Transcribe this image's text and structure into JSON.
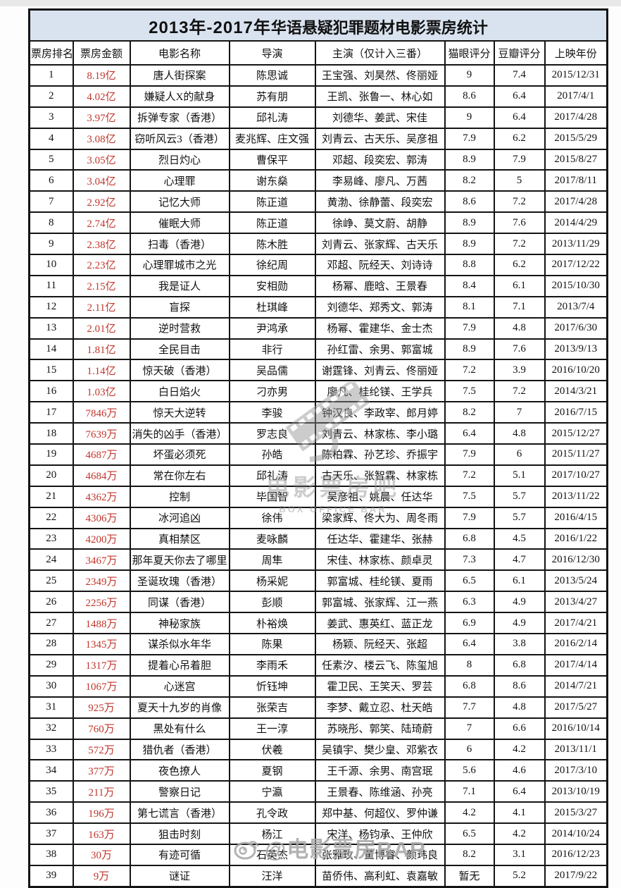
{
  "title": {
    "part1": "2013年-2017年",
    "part2": "华语悬疑犯罪题材电影票房统计"
  },
  "chart_data": {
    "type": "table",
    "title": "2013年-2017年华语悬疑犯罪题材电影票房统计",
    "columns": [
      "票房排名",
      "票房金额",
      "电影名称",
      "导演",
      "主演（仅计入三番）",
      "猫眼评分",
      "豆瓣评分",
      "上映年份"
    ],
    "rows": [
      [
        "1",
        "8.19亿",
        "唐人街探案",
        "陈思诚",
        "王宝强、刘昊然、佟丽娅",
        "9",
        "7.4",
        "2015/12/31"
      ],
      [
        "2",
        "4.02亿",
        "嫌疑人X的献身",
        "苏有朋",
        "王凯、张鲁一、林心如",
        "8.6",
        "6.4",
        "2017/4/1"
      ],
      [
        "3",
        "3.97亿",
        "拆弹专家（香港）",
        "邱礼涛",
        "刘德华、姜武、宋佳",
        "9",
        "6.4",
        "2017/4/28"
      ],
      [
        "4",
        "3.08亿",
        "窃听风云3（香港）",
        "麦兆辉、庄文强",
        "刘青云、古天乐、吴彦祖",
        "7.9",
        "6.2",
        "2015/5/29"
      ],
      [
        "5",
        "3.05亿",
        "烈日灼心",
        "曹保平",
        "邓超、段奕宏、郭涛",
        "8.9",
        "7.9",
        "2015/8/27"
      ],
      [
        "6",
        "3.04亿",
        "心理罪",
        "谢东燊",
        "李易峰、廖凡、万茜",
        "8.2",
        "5",
        "2017/8/11"
      ],
      [
        "7",
        "2.92亿",
        "记忆大师",
        "陈正道",
        "黄渤、徐静蕾、段奕宏",
        "8.6",
        "7.2",
        "2017/4/28"
      ],
      [
        "8",
        "2.74亿",
        "催眠大师",
        "陈正道",
        "徐峥、莫文蔚、胡静",
        "8.9",
        "7.6",
        "2014/4/29"
      ],
      [
        "9",
        "2.38亿",
        "扫毒（香港）",
        "陈木胜",
        "刘青云、张家辉、古天乐",
        "8.9",
        "7.2",
        "2013/11/29"
      ],
      [
        "10",
        "2.23亿",
        "心理罪城市之光",
        "徐纪周",
        "邓超、阮经天、刘诗诗",
        "8.8",
        "6.2",
        "2017/12/22"
      ],
      [
        "11",
        "2.15亿",
        "我是证人",
        "安相勋",
        "杨幂、鹿晗、王景春",
        "8.4",
        "6.1",
        "2015/10/30"
      ],
      [
        "12",
        "2.11亿",
        "盲探",
        "杜琪峰",
        "刘德华、郑秀文、郭涛",
        "8.1",
        "7.1",
        "2013/7/4"
      ],
      [
        "13",
        "2.01亿",
        "逆时营救",
        "尹鸿承",
        "杨幂、霍建华、金士杰",
        "7.9",
        "4.8",
        "2017/6/30"
      ],
      [
        "14",
        "1.81亿",
        "全民目击",
        "非行",
        "孙红雷、余男、郭富城",
        "8.9",
        "7.6",
        "2013/9/13"
      ],
      [
        "15",
        "1.14亿",
        "惊天破（香港）",
        "吴品儒",
        "谢霆锋、刘青云、佟丽娅",
        "7.2",
        "3.9",
        "2016/10/20"
      ],
      [
        "16",
        "1.03亿",
        "白日焰火",
        "刁亦男",
        "廖凡、桂纶镁、王学兵",
        "7.5",
        "7.2",
        "2014/3/21"
      ],
      [
        "17",
        "7846万",
        "惊天大逆转",
        "李骏",
        "钟汉良、李政宰、郎月婷",
        "8.2",
        "7",
        "2016/7/15"
      ],
      [
        "18",
        "7639万",
        "消失的凶手（香港）",
        "罗志良",
        "刘青云、林家栋、李小璐",
        "6.4",
        "4.8",
        "2015/12/27"
      ],
      [
        "19",
        "4687万",
        "坏蛋必须死",
        "孙皓",
        "陈柏霖、孙艺珍、乔振宇",
        "7.9",
        "6",
        "2015/11/27"
      ],
      [
        "20",
        "4684万",
        "常在你左右",
        "邱礼涛",
        "古天乐、张智霖、林家栋",
        "7.2",
        "5.1",
        "2017/10/27"
      ],
      [
        "21",
        "4362万",
        "控制",
        "毕国智",
        "吴彦祖、姚晨、任达华",
        "7.5",
        "5.7",
        "2013/11/22"
      ],
      [
        "22",
        "4306万",
        "冰河追凶",
        "徐伟",
        "梁家辉、佟大为、周冬雨",
        "7.9",
        "5.7",
        "2016/4/15"
      ],
      [
        "23",
        "4200万",
        "真相禁区",
        "麦咏麟",
        "任达华、霍建华、张赫",
        "6.8",
        "4.5",
        "2016/1/22"
      ],
      [
        "24",
        "3467万",
        "那年夏天你去了哪里",
        "周隼",
        "宋佳、林家栋、颜卓灵",
        "7.3",
        "4.7",
        "2016/12/30"
      ],
      [
        "25",
        "2349万",
        "圣诞玫瑰（香港）",
        "杨采妮",
        "郭富城、桂纶镁、夏雨",
        "6.5",
        "6.1",
        "2013/5/24"
      ],
      [
        "26",
        "2256万",
        "同谋（香港）",
        "彭顺",
        "郭富城、张家辉、江一燕",
        "6.3",
        "4.9",
        "2013/4/27"
      ],
      [
        "27",
        "1488万",
        "神秘家族",
        "朴裕焕",
        "姜武、惠英红、蓝正龙",
        "6.9",
        "4.9",
        "2017/4/21"
      ],
      [
        "28",
        "1345万",
        "谋杀似水年华",
        "陈果",
        "杨颖、阮经天、张超",
        "6.4",
        "3.8",
        "2016/2/14"
      ],
      [
        "29",
        "1317万",
        "提着心吊着胆",
        "李雨禾",
        "任素汐、楼云飞、陈玺旭",
        "8",
        "6.8",
        "2017/4/14"
      ],
      [
        "30",
        "1067万",
        "心迷宫",
        "忻钰坤",
        "霍卫民、王笑天、罗芸",
        "6.8",
        "8.6",
        "2014/7/21"
      ],
      [
        "31",
        "925万",
        "夏天十九岁的肖像",
        "张荣吉",
        "李梦、戴立忍、杜天皓",
        "7.7",
        "4.8",
        "2017/5/27"
      ],
      [
        "32",
        "760万",
        "黑处有什么",
        "王一淳",
        "苏晓彤、郭笑、陆琦蔚",
        "7",
        "6.6",
        "2016/10/14"
      ],
      [
        "33",
        "572万",
        "猎仇者（香港）",
        "伏羲",
        "吴镇宇、樊少皇、邓紫衣",
        "6",
        "4.2",
        "2013/11/1"
      ],
      [
        "34",
        "377万",
        "夜色撩人",
        "夏钢",
        "王千源、余男、南宫珉",
        "5.6",
        "4.6",
        "2017/3/10"
      ],
      [
        "35",
        "211万",
        "警察日记",
        "宁瀛",
        "王景春、陈维涵、孙亮",
        "7.1",
        "6.4",
        "2013/10/19"
      ],
      [
        "36",
        "196万",
        "第七谎言（香港）",
        "孔令政",
        "郑中基、何超仪、罗仲谦",
        "4.2",
        "4.1",
        "2015/3/27"
      ],
      [
        "37",
        "163万",
        "狙击时刻",
        "杨江",
        "宋洋、杨钧承、王仲欣",
        "6.5",
        "4.2",
        "2014/10/24"
      ],
      [
        "38",
        "30万",
        "有迹可循",
        "石英杰",
        "张雅玫、董博睿、颜玮良",
        "8.2",
        "3.1",
        "2016/12/23"
      ],
      [
        "39",
        "9万",
        "谜证",
        "汪洋",
        "苗侨伟、高利虹、袁嘉敏",
        "暂无",
        "5.2",
        "2017/9/22"
      ]
    ]
  },
  "watermark": {
    "center_line1": "电影票房吧",
    "center_line2": "BOX OFFICE BAR",
    "bottom_text": "@电影票房BAR",
    "bottom_icon": "weibo-icon",
    "center_icon": "film-strip-icon"
  },
  "colors": {
    "amount_red": "#c0362c",
    "title_bg": "#d9e3f0",
    "grid_border": "#141414",
    "watermark_gray": "#8f8f8f"
  }
}
